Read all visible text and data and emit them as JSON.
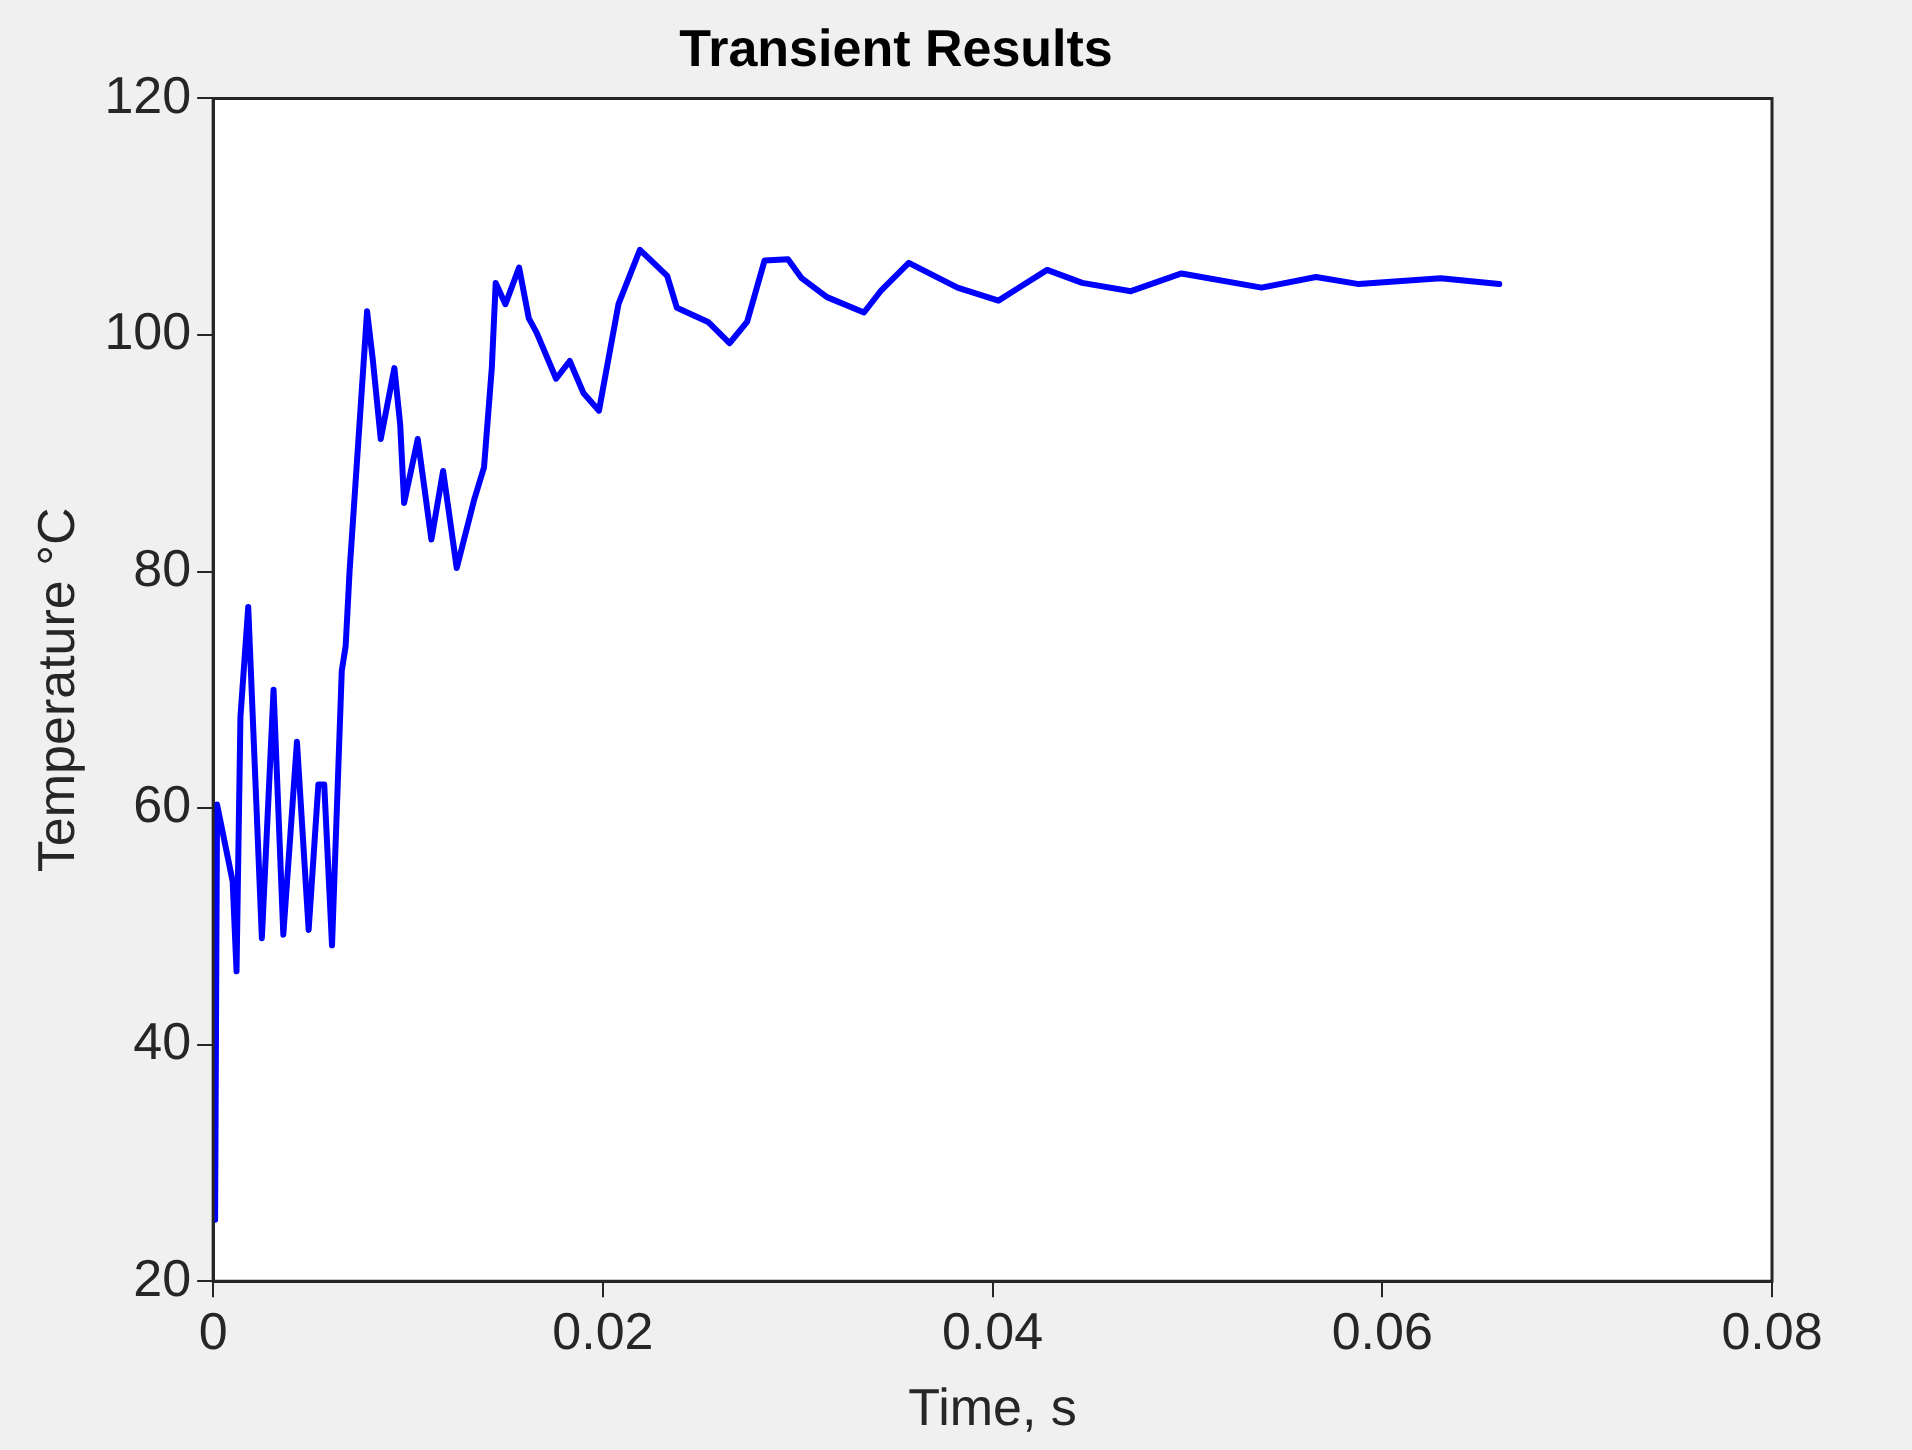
{
  "chart_data": {
    "type": "line",
    "title": "Transient Results",
    "xlabel": "Time, s",
    "ylabel": "Temperature °C",
    "xlim": [
      0,
      0.08
    ],
    "xticks": [
      0,
      0.02,
      0.04,
      0.06,
      0.08
    ],
    "ylim": [
      20,
      120
    ],
    "yticks": [
      20,
      40,
      60,
      80,
      100,
      120
    ],
    "grid": false,
    "legend": false,
    "marker": "none",
    "line_style": "solid",
    "series": [
      {
        "color": "#0000ff",
        "x": [
          0.0001,
          0.0002,
          0.001,
          0.0012,
          0.0014,
          0.0018,
          0.0025,
          0.0031,
          0.0036,
          0.0043,
          0.0049,
          0.0054,
          0.0057,
          0.0061,
          0.0066,
          0.0068,
          0.007,
          0.0079,
          0.0082,
          0.0086,
          0.0093,
          0.0096,
          0.0098,
          0.0105,
          0.0112,
          0.0118,
          0.0125,
          0.0134,
          0.0139,
          0.0143,
          0.0145,
          0.015,
          0.0157,
          0.0162,
          0.0166,
          0.0176,
          0.0183,
          0.019,
          0.0198,
          0.0208,
          0.0219,
          0.0233,
          0.0238,
          0.0254,
          0.0265,
          0.0274,
          0.0283,
          0.0295,
          0.0302,
          0.0315,
          0.0334,
          0.0343,
          0.0357,
          0.0382,
          0.0403,
          0.0428,
          0.0446,
          0.0471,
          0.0497,
          0.0538,
          0.0566,
          0.0588,
          0.063,
          0.066
        ],
        "values": [
          25.2,
          60.3,
          53.8,
          46.2,
          67.7,
          77,
          49,
          70,
          49.3,
          65.6,
          49.7,
          62,
          62,
          48.4,
          71.6,
          73.7,
          80,
          102,
          97.8,
          91.2,
          97.2,
          92.4,
          85.8,
          91.2,
          82.7,
          88.5,
          80.3,
          86.1,
          88.8,
          97.2,
          104.4,
          102.6,
          105.7,
          101.4,
          100.2,
          96.3,
          97.8,
          95.1,
          93.6,
          102.6,
          107.2,
          105,
          102.3,
          101.1,
          99.3,
          101.1,
          106.3,
          106.4,
          104.8,
          103.2,
          101.9,
          103.8,
          106.1,
          104,
          102.9,
          105.5,
          104.4,
          103.7,
          105.2,
          104,
          104.9,
          104.3,
          104.8,
          104.3
        ]
      }
    ]
  }
}
